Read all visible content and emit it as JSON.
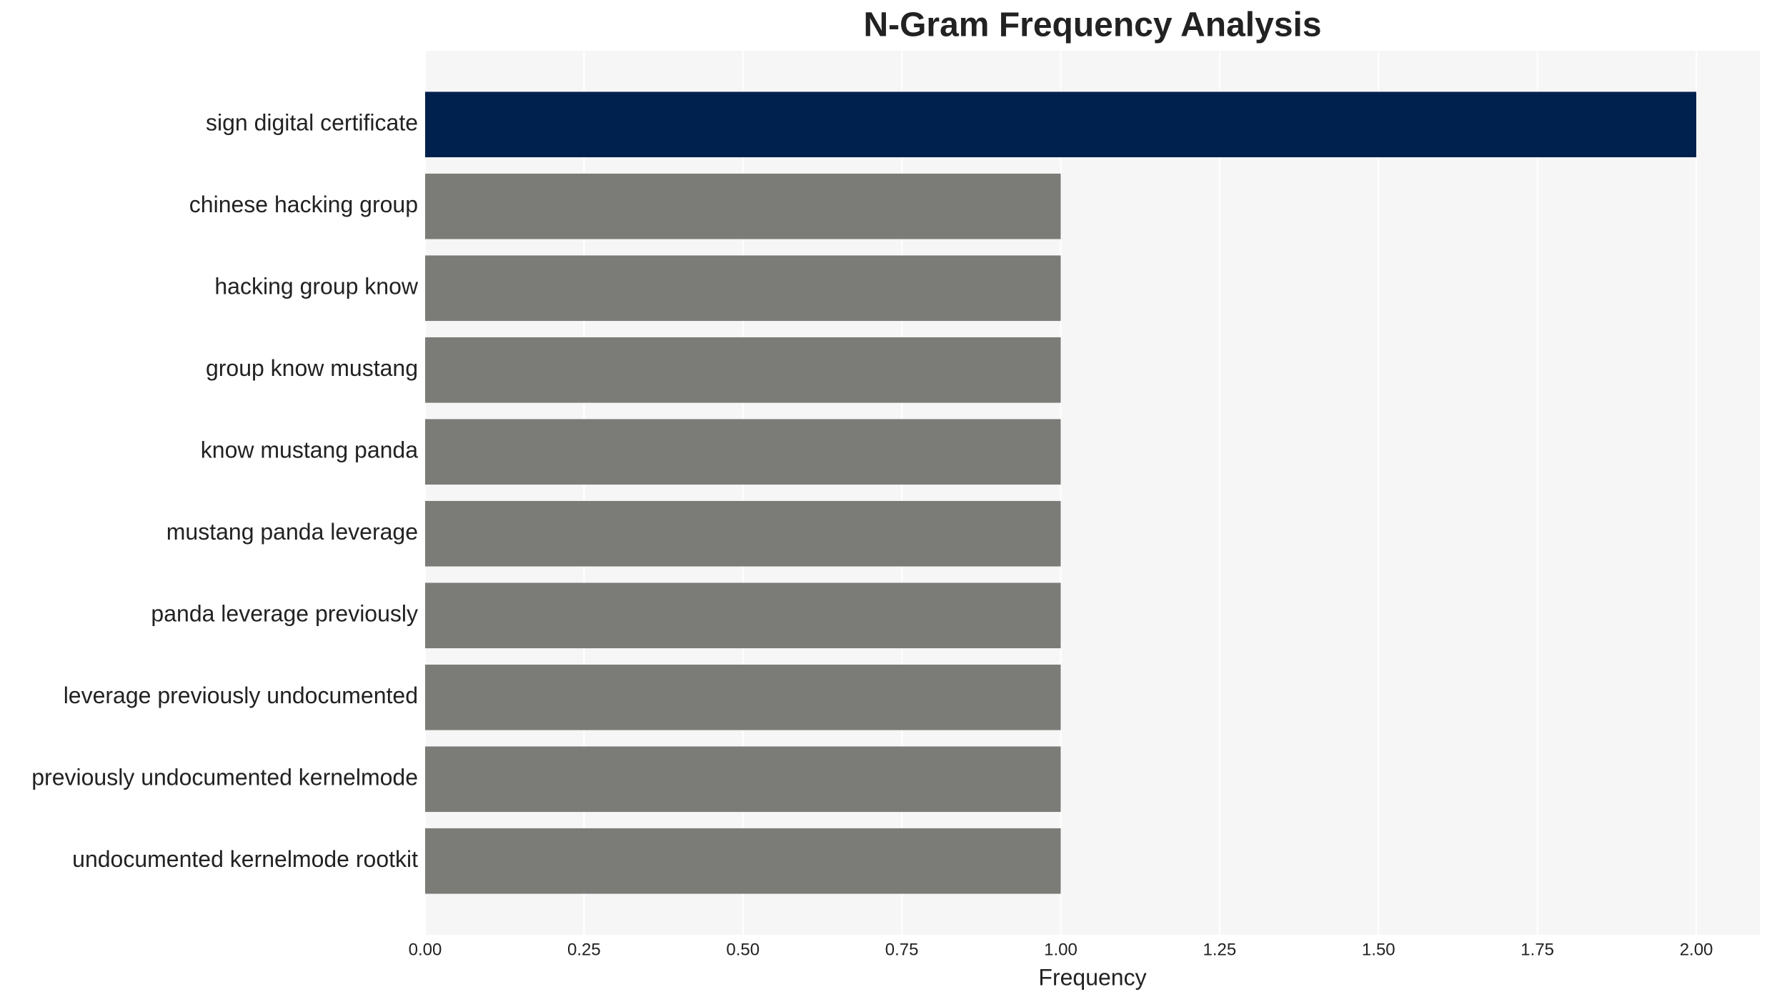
{
  "chart_data": {
    "type": "barh",
    "title": "N-Gram Frequency Analysis",
    "x_label": "Frequency",
    "categories": [
      "sign digital certificate",
      "chinese hacking group",
      "hacking group know",
      "group know mustang",
      "know mustang panda",
      "mustang panda leverage",
      "panda leverage previously",
      "leverage previously undocumented",
      "previously undocumented kernelmode",
      "undocumented kernelmode rootkit"
    ],
    "values": [
      2,
      1,
      1,
      1,
      1,
      1,
      1,
      1,
      1,
      1
    ],
    "colors": [
      "#00214d",
      "#7b7b77",
      "#7b7b77",
      "#7b7b77",
      "#7b7b77",
      "#7b7b77",
      "#7b7b77",
      "#7b7b77",
      "#7b7b77",
      "#7b7b77"
    ],
    "xlim": [
      0,
      2.1
    ],
    "xticks": [
      {
        "value": 0,
        "label": "0.00"
      },
      {
        "value": 0.25,
        "label": "0.25"
      },
      {
        "value": 0.5,
        "label": "0.50"
      },
      {
        "value": 0.75,
        "label": "0.75"
      },
      {
        "value": 1,
        "label": "1.00"
      },
      {
        "value": 1.25,
        "label": "1.25"
      },
      {
        "value": 1.5,
        "label": "1.50"
      },
      {
        "value": 1.75,
        "label": "1.75"
      },
      {
        "value": 2,
        "label": "2.00"
      }
    ],
    "grid": true
  }
}
